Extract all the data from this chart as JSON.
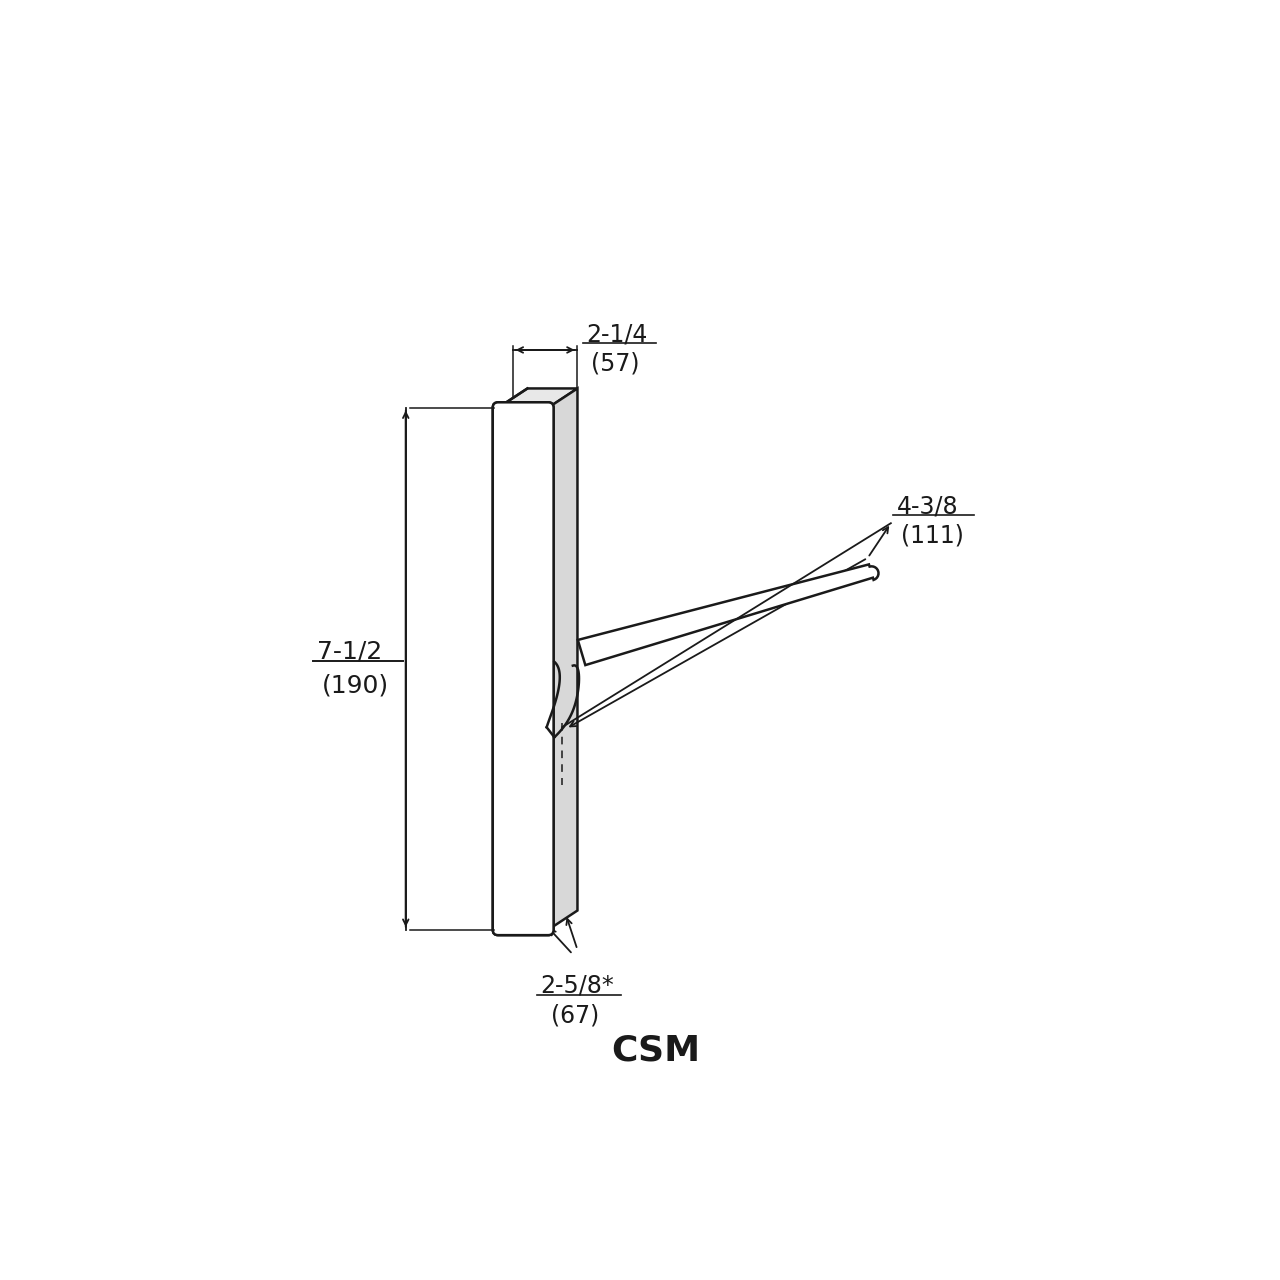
{
  "bg_color": "#ffffff",
  "line_color": "#1a1a1a",
  "title": "CSM",
  "title_fontsize": 26,
  "title_bold": true,
  "dim_fontsize": 17,
  "dim_top_label1": "2-1/4",
  "dim_top_label2": "(57)",
  "dim_left_label1": "7-1/2",
  "dim_left_label2": "(190)",
  "dim_bottom_label1": "2-5/8*",
  "dim_bottom_label2": "(67)",
  "dim_right_label1": "4-3/8",
  "dim_right_label2": "(111)"
}
